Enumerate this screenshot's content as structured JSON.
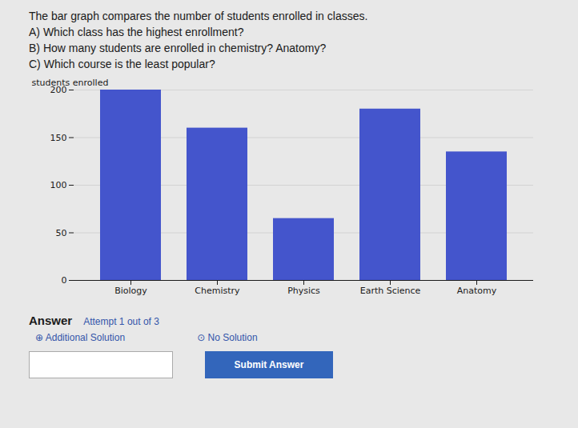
{
  "chart_data": {
    "type": "bar",
    "categories": [
      "Biology",
      "Chemistry",
      "Physics",
      "Earth Science",
      "Anatomy"
    ],
    "values": [
      200,
      160,
      65,
      180,
      135
    ],
    "color": "#4455cc",
    "ylabel": "students enrolled",
    "ylim": [
      0,
      200
    ],
    "yticks": [
      0,
      50,
      100,
      150,
      200
    ],
    "grid": true,
    "annotations": [
      "The bar graph compares the number of students enrolled in classes.",
      "A) Which class has the highest enrollment?",
      "B) How many students are enrolled in chemistry? Anatomy?",
      "C) Which course is the least popular?",
      "Answer",
      "Attempt 1 out of 3",
      "⊕ Additional Solution",
      "⊙ No Solution",
      "Submit Answer"
    ]
  }
}
